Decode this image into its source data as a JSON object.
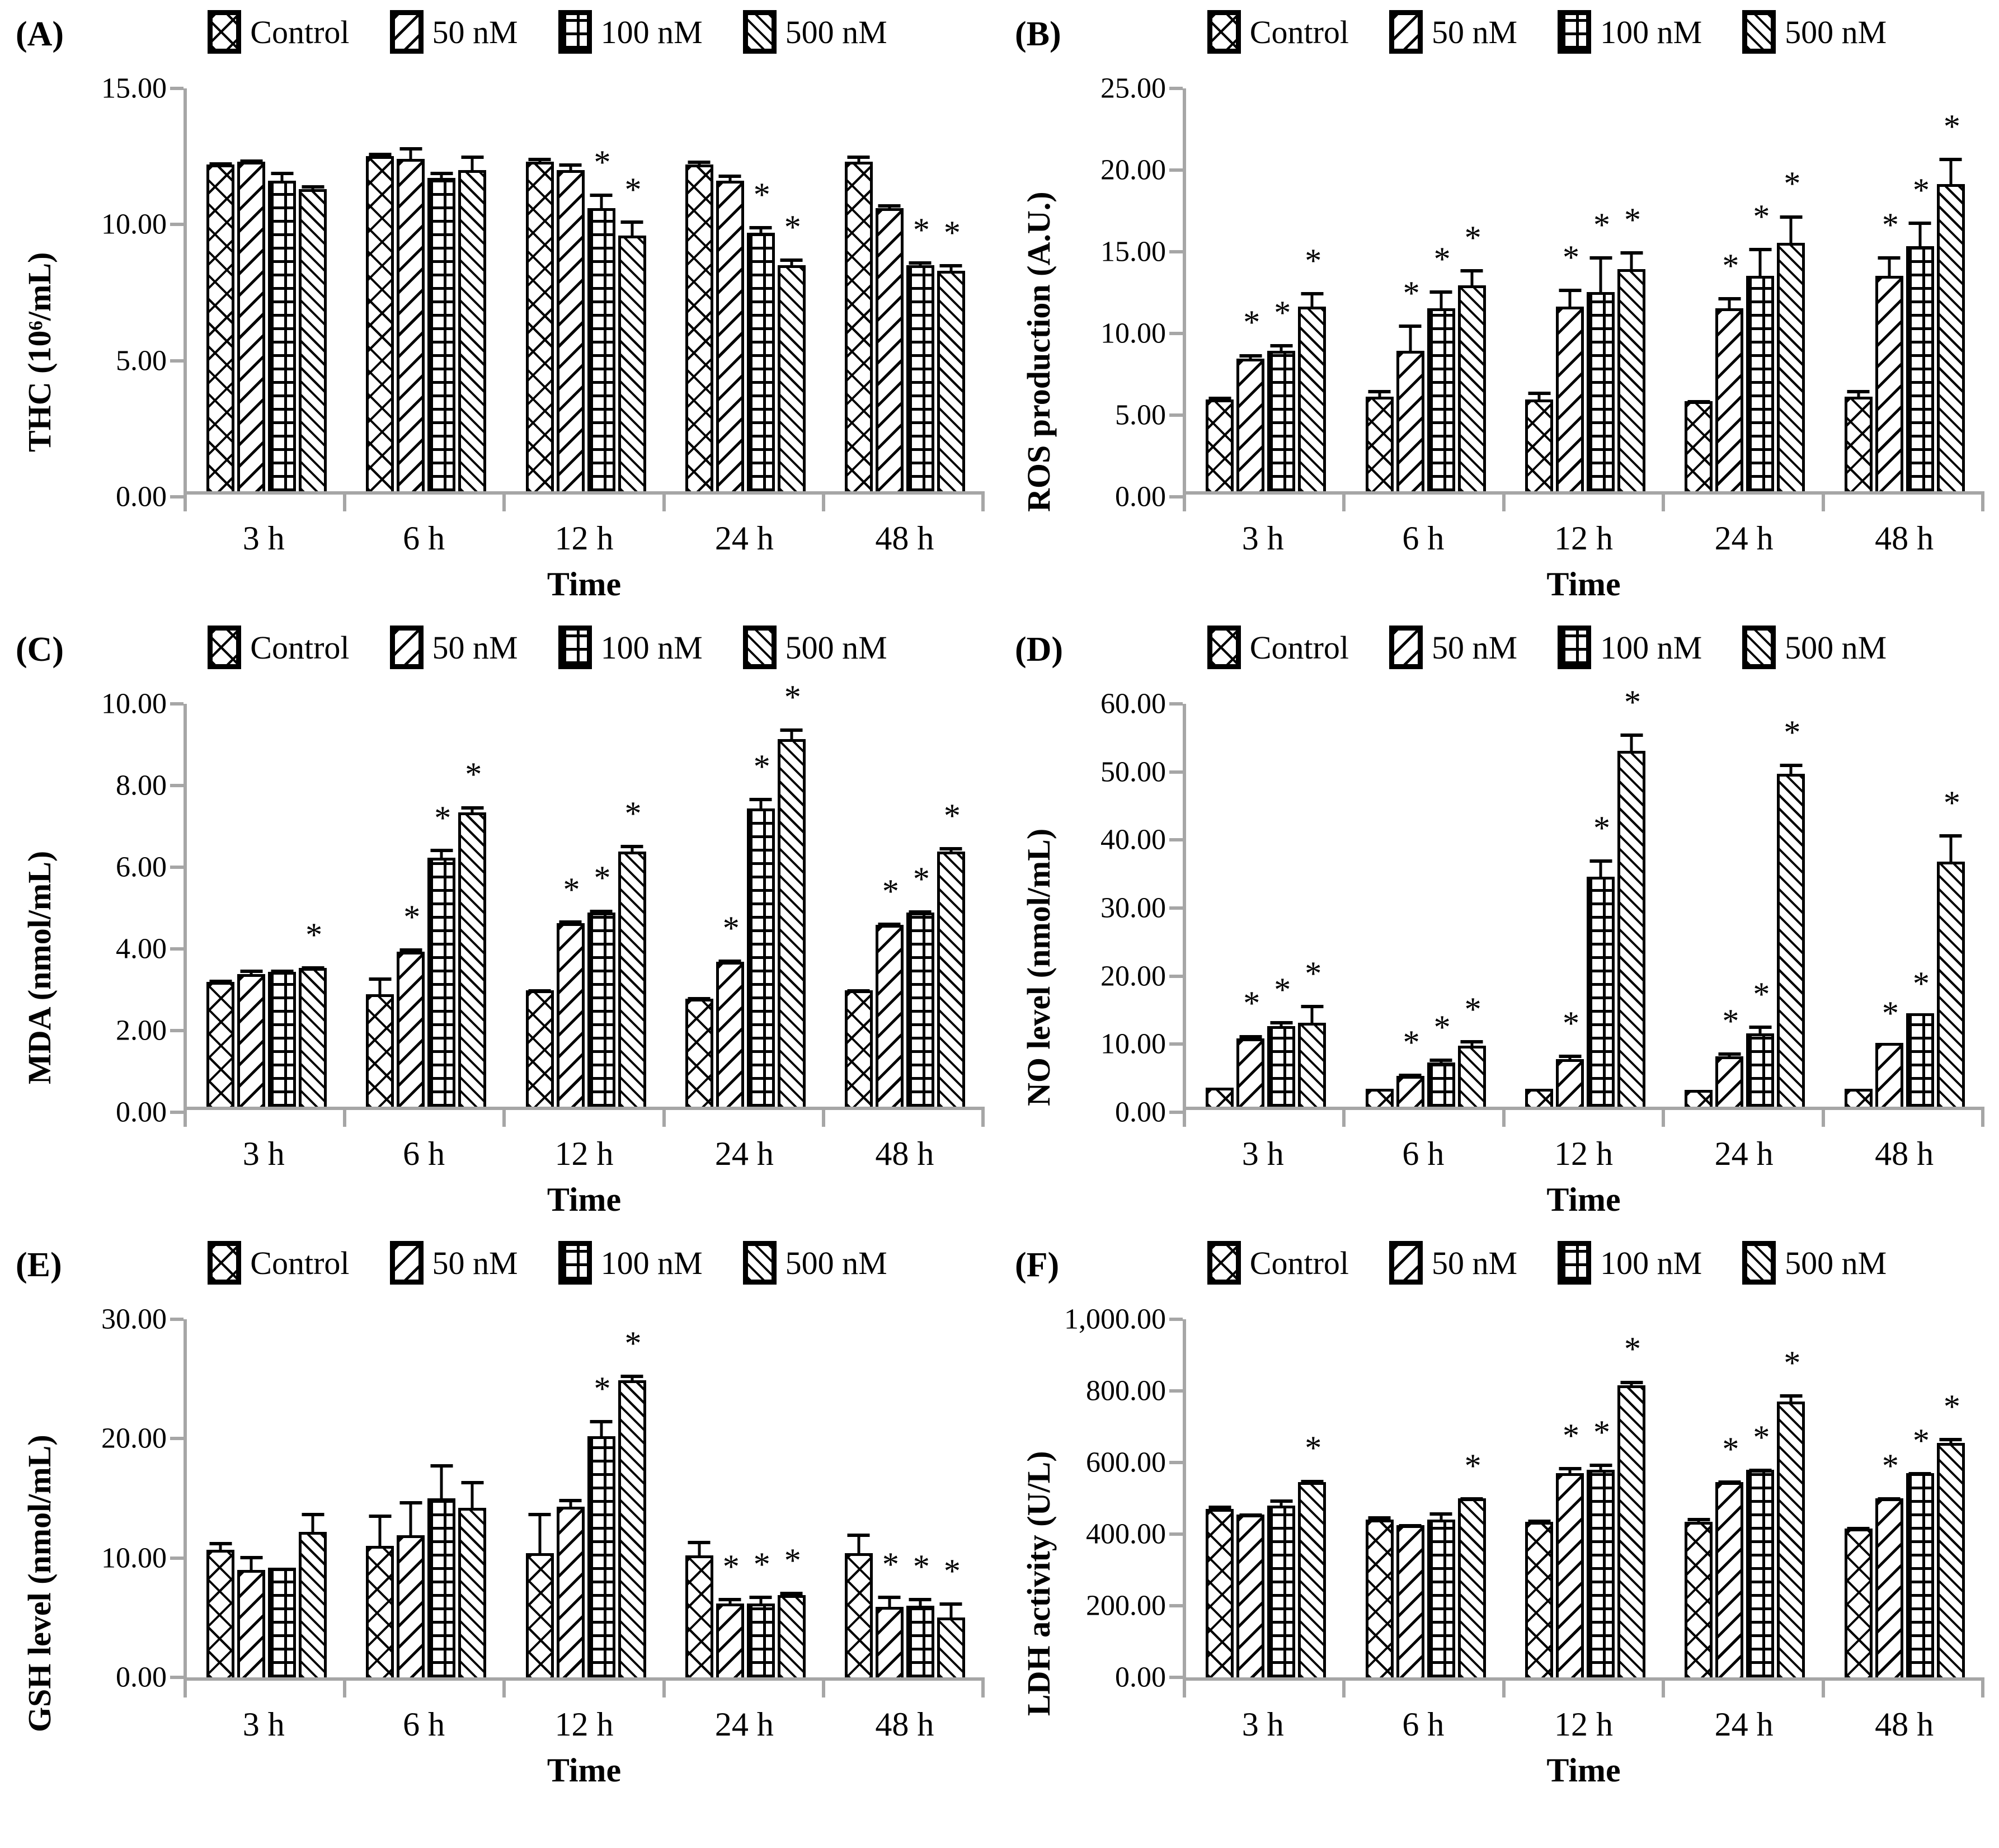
{
  "figure": {
    "significance_marker": "*",
    "time_points": [
      "3 h",
      "6 h",
      "12 h",
      "24 h",
      "48 h"
    ],
    "treatment_groups": [
      "Control",
      "50 nM",
      "100 nM",
      "500 nM"
    ]
  },
  "chart_data": [
    {
      "panel": "A",
      "panel_label": "(A)",
      "type": "bar",
      "title": "",
      "ylabel": "THC (10⁶/mL)",
      "xlabel": "Time",
      "categories": [
        "3 h",
        "6 h",
        "12 h",
        "24 h",
        "48 h"
      ],
      "ylim": [
        0,
        15
      ],
      "ytick_labels": [
        "0.00",
        "5.00",
        "10.00",
        "15.00"
      ],
      "grid": false,
      "legend_position": "top",
      "series": [
        {
          "name": "Control",
          "pattern": "diamond-crosshatch",
          "values": [
            12.0,
            12.3,
            12.1,
            12.0,
            12.1
          ],
          "errors": [
            0.15,
            0.2,
            0.2,
            0.2,
            0.3
          ],
          "significant": [
            false,
            false,
            false,
            false,
            false
          ]
        },
        {
          "name": "50 nM",
          "pattern": "diagonal-up",
          "values": [
            12.1,
            12.2,
            11.8,
            11.4,
            10.4
          ],
          "errors": [
            0.15,
            0.5,
            0.3,
            0.3,
            0.2
          ],
          "significant": [
            false,
            false,
            false,
            false,
            false
          ]
        },
        {
          "name": "100 nM",
          "pattern": "grid",
          "values": [
            11.4,
            11.5,
            10.4,
            9.5,
            8.3
          ],
          "errors": [
            0.4,
            0.3,
            0.6,
            0.3,
            0.2
          ],
          "significant": [
            false,
            false,
            true,
            true,
            true
          ]
        },
        {
          "name": "500 nM",
          "pattern": "diagonal-down",
          "values": [
            11.1,
            11.8,
            9.4,
            8.3,
            8.1
          ],
          "errors": [
            0.2,
            0.6,
            0.6,
            0.3,
            0.3
          ],
          "significant": [
            false,
            false,
            true,
            true,
            true
          ]
        }
      ]
    },
    {
      "panel": "B",
      "panel_label": "(B)",
      "type": "bar",
      "title": "",
      "ylabel": "ROS production (A.U.)",
      "xlabel": "Time",
      "categories": [
        "3 h",
        "6 h",
        "12 h",
        "24 h",
        "48 h"
      ],
      "ylim": [
        0,
        25
      ],
      "ytick_labels": [
        "0.00",
        "5.00",
        "10.00",
        "15.00",
        "20.00",
        "25.00"
      ],
      "grid": false,
      "legend_position": "top",
      "series": [
        {
          "name": "Control",
          "pattern": "diamond-crosshatch",
          "values": [
            5.6,
            5.8,
            5.6,
            5.5,
            5.8
          ],
          "errors": [
            0.3,
            0.5,
            0.6,
            0.2,
            0.5
          ],
          "significant": [
            false,
            false,
            false,
            false,
            false
          ]
        },
        {
          "name": "50 nM",
          "pattern": "diagonal-up",
          "values": [
            8.1,
            8.6,
            11.3,
            11.2,
            13.2
          ],
          "errors": [
            0.4,
            1.7,
            1.2,
            0.8,
            1.3
          ],
          "significant": [
            true,
            true,
            true,
            true,
            true
          ]
        },
        {
          "name": "100 nM",
          "pattern": "grid",
          "values": [
            8.6,
            11.2,
            12.2,
            13.2,
            15.0
          ],
          "errors": [
            0.5,
            1.2,
            2.3,
            1.8,
            1.6
          ],
          "significant": [
            true,
            true,
            true,
            true,
            true
          ]
        },
        {
          "name": "500 nM",
          "pattern": "diagonal-down",
          "values": [
            11.3,
            12.6,
            13.6,
            15.2,
            18.8
          ],
          "errors": [
            1.0,
            1.1,
            1.2,
            1.8,
            1.7
          ],
          "significant": [
            true,
            true,
            true,
            true,
            true
          ]
        }
      ]
    },
    {
      "panel": "C",
      "panel_label": "(C)",
      "type": "bar",
      "title": "",
      "ylabel": "MDA (nmol/mL)",
      "xlabel": "Time",
      "categories": [
        "3 h",
        "6 h",
        "12 h",
        "24 h",
        "48 h"
      ],
      "ylim": [
        0,
        10
      ],
      "ytick_labels": [
        "0.00",
        "2.00",
        "4.00",
        "6.00",
        "8.00",
        "10.00"
      ],
      "grid": false,
      "legend_position": "top",
      "series": [
        {
          "name": "Control",
          "pattern": "diamond-crosshatch",
          "values": [
            3.05,
            2.75,
            2.85,
            2.65,
            2.85
          ],
          "errors": [
            0.1,
            0.45,
            0.07,
            0.07,
            0.07
          ],
          "significant": [
            false,
            false,
            false,
            false,
            false
          ]
        },
        {
          "name": "50 nM",
          "pattern": "diagonal-up",
          "values": [
            3.25,
            3.8,
            4.5,
            3.55,
            4.45
          ],
          "errors": [
            0.15,
            0.12,
            0.1,
            0.1,
            0.1
          ],
          "significant": [
            false,
            true,
            true,
            true,
            true
          ]
        },
        {
          "name": "100 nM",
          "pattern": "grid",
          "values": [
            3.3,
            6.1,
            4.75,
            7.3,
            4.75
          ],
          "errors": [
            0.1,
            0.25,
            0.12,
            0.3,
            0.1
          ],
          "significant": [
            false,
            true,
            true,
            true,
            true
          ]
        },
        {
          "name": "500 nM",
          "pattern": "diagonal-down",
          "values": [
            3.4,
            7.2,
            6.25,
            9.0,
            6.25
          ],
          "errors": [
            0.08,
            0.2,
            0.2,
            0.3,
            0.15
          ],
          "significant": [
            true,
            true,
            true,
            true,
            true
          ]
        }
      ]
    },
    {
      "panel": "D",
      "panel_label": "(D)",
      "type": "bar",
      "title": "",
      "ylabel": "NO level (nmol/mL)",
      "xlabel": "Time",
      "categories": [
        "3 h",
        "6 h",
        "12 h",
        "24 h",
        "48 h"
      ],
      "ylim": [
        0,
        60
      ],
      "ytick_labels": [
        "0.00",
        "10.00",
        "20.00",
        "30.00",
        "40.00",
        "50.00",
        "60.00"
      ],
      "grid": false,
      "legend_position": "top",
      "series": [
        {
          "name": "Control",
          "pattern": "diamond-crosshatch",
          "values": [
            2.8,
            2.6,
            2.6,
            2.5,
            2.6
          ],
          "errors": [
            0,
            0,
            0,
            0,
            0
          ],
          "significant": [
            false,
            false,
            false,
            false,
            false
          ]
        },
        {
          "name": "50 nM",
          "pattern": "diagonal-up",
          "values": [
            10.0,
            4.5,
            7.0,
            7.4,
            9.4
          ],
          "errors": [
            0.8,
            0.6,
            0.9,
            0.8,
            0
          ],
          "significant": [
            true,
            true,
            true,
            true,
            true
          ]
        },
        {
          "name": "100 nM",
          "pattern": "grid",
          "values": [
            11.8,
            6.5,
            33.8,
            10.8,
            13.7
          ],
          "errors": [
            1.0,
            0.8,
            2.8,
            1.4,
            0
          ],
          "significant": [
            true,
            true,
            true,
            true,
            true
          ]
        },
        {
          "name": "500 nM",
          "pattern": "diagonal-down",
          "values": [
            12.3,
            9.0,
            52.3,
            48.9,
            36.0
          ],
          "errors": [
            2.9,
            1.0,
            2.8,
            1.7,
            4.3
          ],
          "significant": [
            true,
            true,
            true,
            true,
            true
          ]
        }
      ]
    },
    {
      "panel": "E",
      "panel_label": "(E)",
      "type": "bar",
      "title": "",
      "ylabel": "GSH level (nmol/mL)",
      "xlabel": "Time",
      "categories": [
        "3 h",
        "6 h",
        "12 h",
        "24 h",
        "48 h"
      ],
      "ylim": [
        0,
        30
      ],
      "ytick_labels": [
        "0.00",
        "10.00",
        "20.00",
        "30.00"
      ],
      "grid": false,
      "legend_position": "top",
      "series": [
        {
          "name": "Control",
          "pattern": "diamond-crosshatch",
          "values": [
            10.7,
            11.0,
            10.4,
            10.2,
            10.4
          ],
          "errors": [
            0.8,
            2.8,
            3.5,
            1.4,
            1.8
          ],
          "significant": [
            false,
            false,
            false,
            false,
            false
          ]
        },
        {
          "name": "50 nM",
          "pattern": "diagonal-up",
          "values": [
            9.0,
            11.9,
            14.3,
            6.2,
            5.9
          ],
          "errors": [
            1.3,
            3.0,
            0.8,
            0.6,
            1.1
          ],
          "significant": [
            false,
            false,
            false,
            true,
            true
          ]
        },
        {
          "name": "100 nM",
          "pattern": "grid",
          "values": [
            9.2,
            15.0,
            20.2,
            6.2,
            6.0
          ],
          "errors": [
            0.15,
            3.0,
            1.5,
            0.8,
            0.8
          ],
          "significant": [
            false,
            false,
            true,
            true,
            true
          ]
        },
        {
          "name": "500 nM",
          "pattern": "diagonal-down",
          "values": [
            12.2,
            14.2,
            24.9,
            6.9,
            5.0
          ],
          "errors": [
            1.7,
            2.4,
            0.6,
            0.4,
            1.4
          ],
          "significant": [
            false,
            false,
            true,
            true,
            true
          ]
        }
      ]
    },
    {
      "panel": "F",
      "panel_label": "(F)",
      "type": "bar",
      "title": "",
      "ylabel": "LDH activity (U/L)",
      "xlabel": "Time",
      "categories": [
        "3 h",
        "6 h",
        "12 h",
        "24 h",
        "48 h"
      ],
      "ylim": [
        0,
        1000
      ],
      "ytick_labels": [
        "0.00",
        "200.00",
        "400.00",
        "600.00",
        "800.00",
        "1,000.00"
      ],
      "grid": false,
      "legend_position": "top",
      "series": [
        {
          "name": "Control",
          "pattern": "diamond-crosshatch",
          "values": [
            470,
            440,
            435,
            435,
            415
          ],
          "errors": [
            15,
            15,
            10,
            15,
            10
          ],
          "significant": [
            false,
            false,
            false,
            false,
            false
          ]
        },
        {
          "name": "50 nM",
          "pattern": "diagonal-up",
          "values": [
            455,
            425,
            570,
            545,
            500
          ],
          "errors": [
            8,
            8,
            22,
            10,
            8
          ],
          "significant": [
            false,
            false,
            true,
            true,
            true
          ]
        },
        {
          "name": "100 nM",
          "pattern": "grid",
          "values": [
            480,
            440,
            580,
            580,
            570
          ],
          "errors": [
            22,
            25,
            22,
            8,
            8
          ],
          "significant": [
            false,
            false,
            true,
            true,
            true
          ]
        },
        {
          "name": "500 nM",
          "pattern": "diagonal-down",
          "values": [
            545,
            500,
            815,
            770,
            655
          ],
          "errors": [
            12,
            8,
            18,
            25,
            18
          ],
          "significant": [
            true,
            true,
            true,
            true,
            true
          ]
        }
      ]
    }
  ]
}
